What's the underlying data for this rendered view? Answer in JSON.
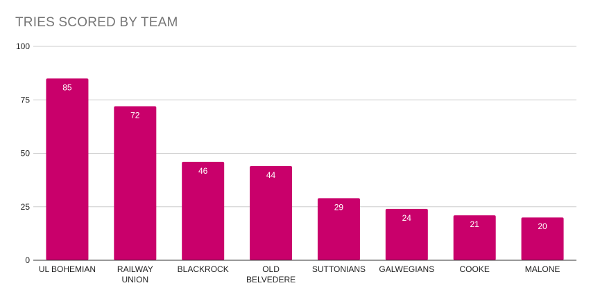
{
  "chart_data": {
    "type": "bar",
    "title": "TRIES SCORED BY TEAM",
    "categories": [
      [
        "UL BOHEMIAN"
      ],
      [
        "RAILWAY",
        "UNION"
      ],
      [
        "BLACKROCK"
      ],
      [
        "OLD",
        "BELVEDERE"
      ],
      [
        "SUTTONIANS"
      ],
      [
        "GALWEGIANS"
      ],
      [
        "COOKE"
      ],
      [
        "MALONE"
      ]
    ],
    "values": [
      85,
      72,
      46,
      44,
      29,
      24,
      21,
      20
    ],
    "ylim": [
      0,
      100
    ],
    "yticks": [
      0,
      25,
      50,
      75,
      100
    ],
    "grid": true,
    "data_labels": true,
    "bar_color": "#c9006b",
    "grid_color": "#cccccc",
    "axis_color": "#333333"
  }
}
